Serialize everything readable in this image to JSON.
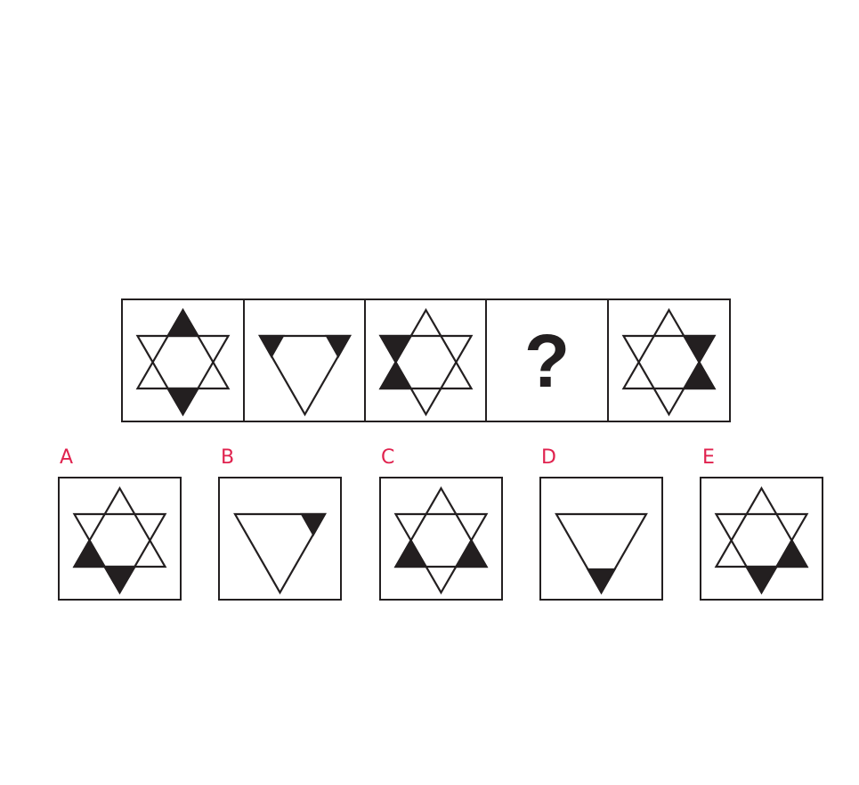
{
  "puzzle": {
    "sequence": [
      {
        "figure": "star",
        "filled": [
          "top",
          "bottom"
        ]
      },
      {
        "figure": "down-triangle",
        "filled": [
          "top-left",
          "top-right"
        ]
      },
      {
        "figure": "star",
        "filled": [
          "upper-left",
          "lower-left"
        ]
      },
      {
        "figure": "question",
        "symbol": "?"
      },
      {
        "figure": "star",
        "filled": [
          "upper-right",
          "lower-right"
        ]
      }
    ],
    "options": [
      {
        "label": "A",
        "figure": "star",
        "filled": [
          "lower-left",
          "bottom"
        ]
      },
      {
        "label": "B",
        "figure": "down-triangle",
        "filled": [
          "top-right"
        ]
      },
      {
        "label": "C",
        "figure": "star",
        "filled": [
          "lower-left",
          "lower-right"
        ]
      },
      {
        "label": "D",
        "figure": "down-triangle",
        "filled": [
          "bottom"
        ]
      },
      {
        "label": "E",
        "figure": "star",
        "filled": [
          "bottom",
          "lower-right"
        ]
      }
    ],
    "colors": {
      "stroke": "#231f20",
      "fill": "#231f20",
      "label": "#e0224e"
    }
  }
}
